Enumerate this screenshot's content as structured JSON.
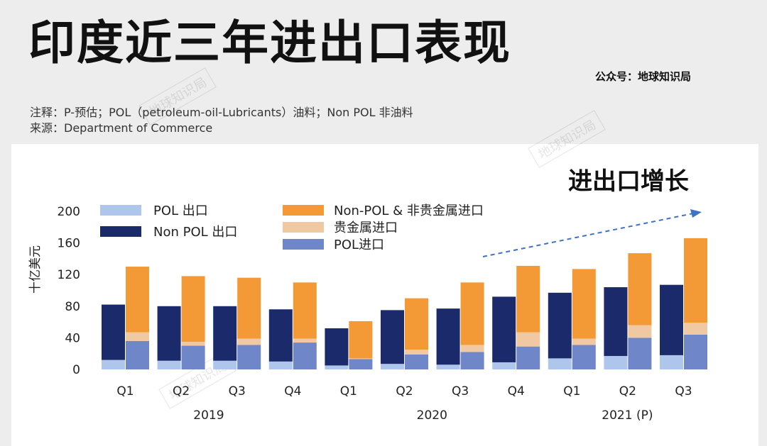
{
  "page": {
    "title": "印度近三年进出口表现",
    "account": "公众号：地球知识局",
    "note": "注释：P-预估；POL（petroleum-oil-Lubricants）油料；Non POL 非油料",
    "source": "来源：Department of Commerce",
    "subtitle": "进出口增长",
    "watermark": "地球知识局"
  },
  "colors": {
    "pol_export": "#aec6ec",
    "nonpol_export": "#1b2a6b",
    "pol_import": "#6f86c9",
    "gold_import": "#f0c9a2",
    "nonpol_import": "#f39a36",
    "trend": "#3d72c4"
  },
  "chart_data": {
    "type": "bar",
    "stacked": true,
    "grouped_pairs": true,
    "ylabel": "十亿美元",
    "ylim": [
      0,
      200
    ],
    "yticks": [
      0,
      40,
      80,
      120,
      160,
      200
    ],
    "grid": false,
    "legend_position": "top",
    "categories": [
      "Q1",
      "Q2",
      "Q3",
      "Q4",
      "Q1",
      "Q2",
      "Q3",
      "Q4",
      "Q1",
      "Q2",
      "Q3"
    ],
    "year_labels": [
      {
        "label": "2019",
        "start": 0,
        "end": 3
      },
      {
        "label": "2020",
        "start": 4,
        "end": 7
      },
      {
        "label": "2021 (P)",
        "start": 8,
        "end": 10
      }
    ],
    "export_series": [
      {
        "name": "POL 出口",
        "color_key": "pol_export",
        "values": [
          12,
          11,
          11,
          10,
          5,
          7,
          6,
          9,
          14,
          17,
          18
        ]
      },
      {
        "name": "Non POL 出口",
        "color_key": "nonpol_export",
        "values": [
          70,
          69,
          69,
          66,
          47,
          68,
          71,
          83,
          83,
          87,
          89
        ]
      }
    ],
    "import_series": [
      {
        "name": "POL进口",
        "color_key": "pol_import",
        "values": [
          36,
          30,
          31,
          34,
          13,
          19,
          22,
          29,
          31,
          40,
          44
        ]
      },
      {
        "name": "贵金属进口",
        "color_key": "gold_import",
        "values": [
          11,
          5,
          8,
          5,
          1,
          6,
          9,
          18,
          8,
          16,
          15
        ]
      },
      {
        "name": "Non-POL & 非贵金属进口",
        "color_key": "nonpol_import",
        "values": [
          83,
          83,
          77,
          71,
          47,
          65,
          79,
          84,
          88,
          91,
          107
        ]
      }
    ],
    "legend": {
      "left": [
        {
          "name": "POL 出口",
          "color_key": "pol_export"
        },
        {
          "name": "Non POL 出口",
          "color_key": "nonpol_export"
        }
      ],
      "right": [
        {
          "name": "Non-POL & 非贵金属进口",
          "color_key": "nonpol_import"
        },
        {
          "name": "贵金属进口",
          "color_key": "gold_import"
        },
        {
          "name": "POL进口",
          "color_key": "pol_import"
        }
      ]
    },
    "annotation": "upward dashed trend arrow"
  }
}
